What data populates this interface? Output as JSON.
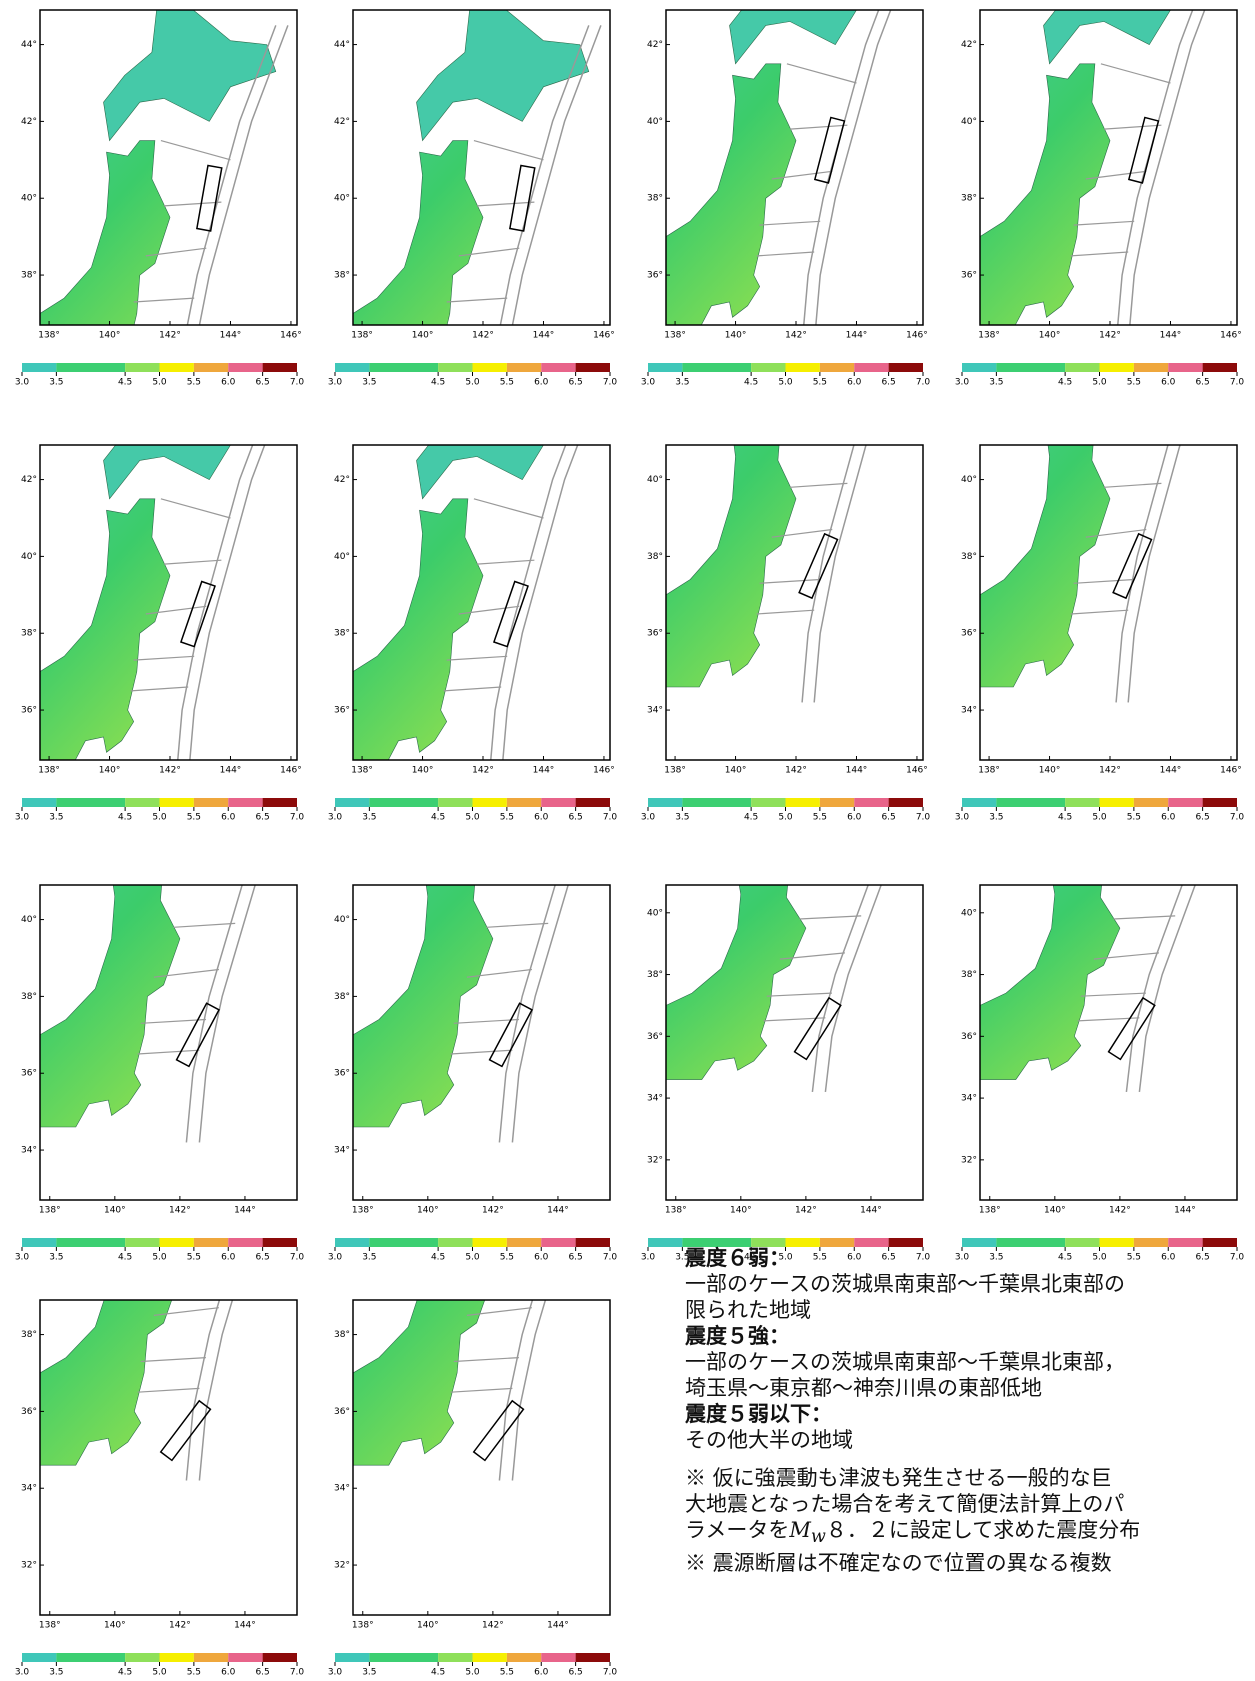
{
  "colorbar": {
    "ticks": [
      {
        "value": 3,
        "label": "3.0"
      },
      {
        "value": 3.5,
        "label": "3.5"
      },
      {
        "value": 4.5,
        "label": "4.5"
      },
      {
        "value": 5,
        "label": "5.0"
      },
      {
        "value": 5.5,
        "label": "5.5"
      },
      {
        "value": 6,
        "label": "6.0"
      },
      {
        "value": 6.5,
        "label": "6.5"
      },
      {
        "value": 7,
        "label": "7.0"
      }
    ],
    "colors": [
      "#3fc7b9",
      "#3ccf72",
      "#8fe05a",
      "#f6ef00",
      "#efa73c",
      "#e8648a",
      "#8c0a0a"
    ]
  },
  "panels": [
    {
      "lat_ticks": [
        "44°",
        "42°",
        "40°",
        "38°"
      ],
      "lon_ticks": [
        "138°",
        "140°",
        "142°",
        "144°",
        "146°"
      ]
    },
    {
      "lat_ticks": [
        "44°",
        "42°",
        "40°",
        "38°"
      ],
      "lon_ticks": [
        "138°",
        "140°",
        "142°",
        "144°",
        "146°"
      ]
    },
    {
      "lat_ticks": [
        "42°",
        "40°",
        "38°",
        "36°"
      ],
      "lon_ticks": [
        "138°",
        "140°",
        "142°",
        "144°",
        "146°"
      ]
    },
    {
      "lat_ticks": [
        "42°",
        "40°",
        "38°",
        "36°"
      ],
      "lon_ticks": [
        "138°",
        "140°",
        "142°",
        "144°",
        "146°"
      ]
    },
    {
      "lat_ticks": [
        "42°",
        "40°",
        "38°",
        "36°"
      ],
      "lon_ticks": [
        "138°",
        "140°",
        "142°",
        "144°",
        "146°"
      ]
    },
    {
      "lat_ticks": [
        "42°",
        "40°",
        "38°",
        "36°"
      ],
      "lon_ticks": [
        "138°",
        "140°",
        "142°",
        "144°",
        "146°"
      ]
    },
    {
      "lat_ticks": [
        "40°",
        "38°",
        "36°",
        "34°"
      ],
      "lon_ticks": [
        "138°",
        "140°",
        "142°",
        "144°",
        "146°"
      ]
    },
    {
      "lat_ticks": [
        "40°",
        "38°",
        "36°",
        "34°"
      ],
      "lon_ticks": [
        "138°",
        "140°",
        "142°",
        "144°",
        "146°"
      ]
    },
    {
      "lat_ticks": [
        "40°",
        "38°",
        "36°",
        "34°"
      ],
      "lon_ticks": [
        "138°",
        "140°",
        "142°",
        "144°"
      ]
    },
    {
      "lat_ticks": [
        "40°",
        "38°",
        "36°",
        "34°"
      ],
      "lon_ticks": [
        "138°",
        "140°",
        "142°",
        "144°"
      ]
    },
    {
      "lat_ticks": [
        "40°",
        "38°",
        "36°",
        "34°",
        "32°"
      ],
      "lon_ticks": [
        "138°",
        "140°",
        "142°",
        "144°"
      ]
    },
    {
      "lat_ticks": [
        "40°",
        "38°",
        "36°",
        "34°",
        "32°"
      ],
      "lon_ticks": [
        "138°",
        "140°",
        "142°",
        "144°"
      ]
    },
    {
      "lat_ticks": [
        "38°",
        "36°",
        "34°",
        "32°"
      ],
      "lon_ticks": [
        "138°",
        "140°",
        "142°",
        "144°"
      ]
    },
    {
      "lat_ticks": [
        "38°",
        "36°",
        "34°",
        "32°"
      ],
      "lon_ticks": [
        "138°",
        "140°",
        "142°",
        "144°"
      ]
    }
  ],
  "notes": {
    "h1": "震度６弱：",
    "t1a": "一部のケースの茨城県南東部～千葉県北東部の",
    "t1b": "限られた地域",
    "h2": "震度５強：",
    "t2a": "一部のケースの茨城県南東部～千葉県北東部，",
    "t2b": "埼玉県～東京都～神奈川県の東部低地",
    "h3": "震度５弱以下：",
    "t3": "その他大半の地域",
    "n1a": "※ 仮に強震動も津波も発生させる一般的な巨",
    "n1b": "大地震となった場合を考えて簡便法計算上のパ",
    "n1c_pre": "ラメータを",
    "n1c_m": "M",
    "n1c_w": "w",
    "n1c_post": "８．２に設定して求めた震度分布",
    "n2": "※ 震源断層は不確定なので位置の異なる複数"
  }
}
